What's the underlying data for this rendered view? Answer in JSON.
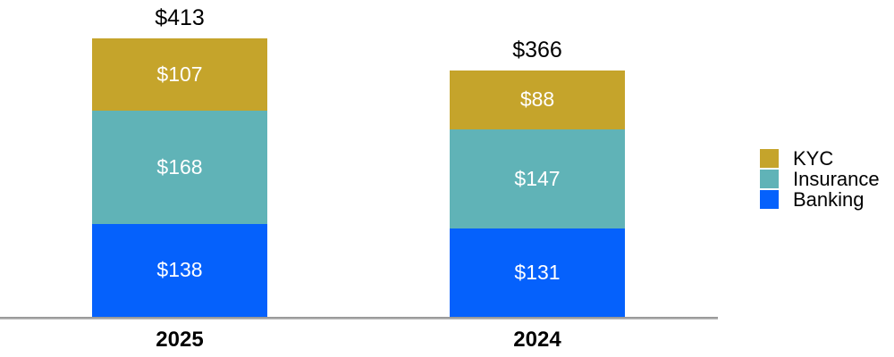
{
  "chart_data": {
    "type": "bar",
    "stacked": true,
    "orientation": "vertical",
    "title": "",
    "xlabel": "",
    "ylabel": "",
    "value_axis_visible": false,
    "gridlines": false,
    "legend_position": "right",
    "background_color": "#FFFFFF",
    "axis_line_color": "#A0A0A0",
    "categories": [
      "2025",
      "2024"
    ],
    "series": [
      {
        "name": "Banking",
        "color": "#0561FC",
        "values": [
          138,
          131
        ],
        "labels": [
          "$138",
          "$131"
        ]
      },
      {
        "name": "Insurance",
        "color": "#60B3B7",
        "values": [
          168,
          147
        ],
        "labels": [
          "$168",
          "$147"
        ]
      },
      {
        "name": "KYC",
        "color": "#C5A42B",
        "values": [
          107,
          88
        ],
        "labels": [
          "$107",
          "$88"
        ]
      }
    ],
    "total_values": [
      413,
      366
    ],
    "totals": [
      "$413",
      "$366"
    ],
    "legend": [
      "KYC",
      "Insurance",
      "Banking"
    ],
    "segment_label_color": "#FFFFFF",
    "total_label_color": "#000000"
  }
}
